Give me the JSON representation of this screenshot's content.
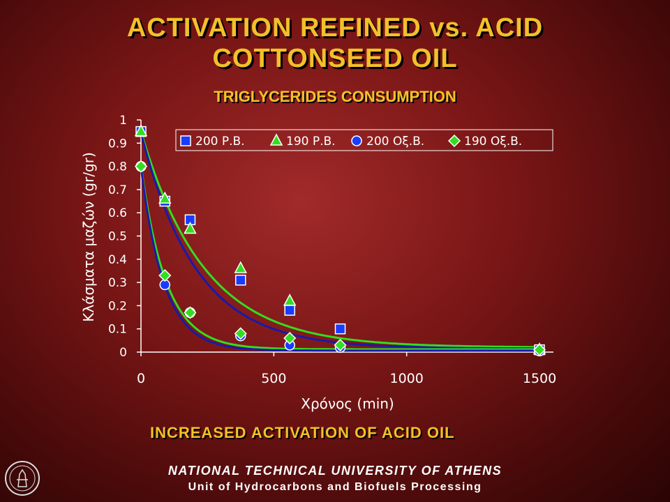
{
  "title_line1": "ACTIVATION REFINED vs. ACID",
  "title_line2": "COTTONSEED OIL",
  "note": "INCREASED  ACTIVATION OF ACID OIL",
  "footer_line1": "NATIONAL TECHNICAL UNIVERSITY OF ATHENS",
  "footer_line2": "Unit of Hydrocarbons and Biofuels Processing",
  "colors": {
    "title": "#f2c02a",
    "series_blue": "#1a3cff",
    "series_green": "#33dd22",
    "fit_blue": "#1a1aaa",
    "fit_green": "#33dd22"
  },
  "chart_data": {
    "type": "scatter",
    "title": "TRIGLYCERIDES CONSUMPTION",
    "xlabel": "Χρόνος (min)",
    "ylabel": "Κλάσματα μαζών (gr/gr)",
    "xlim": [
      0,
      1500
    ],
    "ylim": [
      0,
      1
    ],
    "xticks": [
      "0",
      "500",
      "1000",
      "1500"
    ],
    "yticks": [
      "0",
      "0.1",
      "0.2",
      "0.3",
      "0.4",
      "0.5",
      "0.6",
      "0.7",
      "0.8",
      "0.9",
      "1"
    ],
    "legend_position": "top",
    "series": [
      {
        "name": "200 Ρ.Β.",
        "marker": "square",
        "color": "#1a3cff",
        "x": [
          0,
          90,
          185,
          375,
          560,
          750,
          1500
        ],
        "y": [
          0.95,
          0.65,
          0.57,
          0.31,
          0.18,
          0.1,
          0.01
        ]
      },
      {
        "name": "190 Ρ.Β.",
        "marker": "triangle",
        "color": "#33dd22",
        "x": [
          0,
          90,
          185,
          375,
          560,
          750,
          1500
        ],
        "y": [
          0.95,
          0.66,
          0.53,
          0.36,
          0.22,
          null,
          0.01
        ]
      },
      {
        "name": "200 Οξ.Β.",
        "marker": "circle",
        "color": "#1a3cff",
        "x": [
          0,
          90,
          185,
          375,
          560,
          750,
          1500
        ],
        "y": [
          0.8,
          0.29,
          0.17,
          0.07,
          0.03,
          0.02,
          0.005
        ]
      },
      {
        "name": "190 Οξ.Β.",
        "marker": "diamond",
        "color": "#33dd22",
        "x": [
          0,
          90,
          185,
          375,
          560,
          750,
          1500
        ],
        "y": [
          0.8,
          0.33,
          0.17,
          0.08,
          0.06,
          0.03,
          0.01
        ]
      }
    ]
  }
}
